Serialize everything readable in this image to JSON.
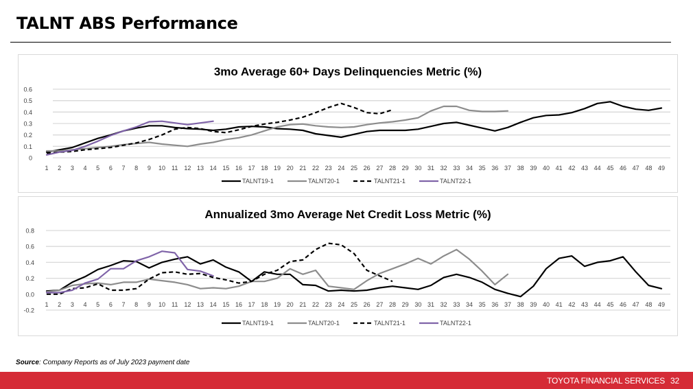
{
  "page": {
    "title": "TALNT ABS Performance",
    "source_label": "Source",
    "source_text": ": Company Reports as of July 2023 payment date",
    "footer_brand": "TOYOTA FINANCIAL SERVICES",
    "page_number": "32",
    "colors": {
      "footer": "#d52b36",
      "talnt19": "#000000",
      "talnt20": "#8c8c8c",
      "talnt21": "#000000",
      "talnt22": "#7f63a8"
    }
  },
  "chart_data": [
    {
      "type": "line",
      "title": "3mo Average 60+ Days Delinquencies Metric (%)",
      "xlabel": "",
      "ylabel": "",
      "x": [
        1,
        2,
        3,
        4,
        5,
        6,
        7,
        8,
        9,
        10,
        11,
        12,
        13,
        14,
        15,
        16,
        17,
        18,
        19,
        20,
        21,
        22,
        23,
        24,
        25,
        26,
        27,
        28,
        29,
        30,
        31,
        32,
        33,
        34,
        35,
        36,
        37,
        38,
        39,
        40,
        41,
        42,
        43,
        44,
        45,
        46,
        47,
        48,
        49
      ],
      "ylim": [
        0,
        0.6
      ],
      "yticks": [
        "0",
        "0.1",
        "0.2",
        "0.3",
        "0.4",
        "0.5",
        "0.6"
      ],
      "grid": true,
      "legend": "bottom",
      "series": [
        {
          "name": "TALNT19-1",
          "style": "solid",
          "color": "#000000",
          "values": [
            0.05,
            0.07,
            0.09,
            0.13,
            0.17,
            0.2,
            0.235,
            0.26,
            0.28,
            0.28,
            0.265,
            0.255,
            0.25,
            0.24,
            0.25,
            0.27,
            0.275,
            0.27,
            0.255,
            0.25,
            0.24,
            0.21,
            0.195,
            0.18,
            0.205,
            0.23,
            0.24,
            0.24,
            0.24,
            0.25,
            0.275,
            0.3,
            0.31,
            0.285,
            0.26,
            0.235,
            0.265,
            0.31,
            0.35,
            0.37,
            0.375,
            0.395,
            0.43,
            0.475,
            0.49,
            0.45,
            0.425,
            0.415,
            0.435
          ]
        },
        {
          "name": "TALNT20-1",
          "style": "solid",
          "color": "#8c8c8c",
          "values": [
            0.06,
            0.06,
            0.07,
            0.08,
            0.09,
            0.1,
            0.115,
            0.125,
            0.135,
            0.12,
            0.11,
            0.1,
            0.12,
            0.135,
            0.16,
            0.175,
            0.2,
            0.235,
            0.27,
            0.29,
            0.295,
            0.28,
            0.27,
            0.265,
            0.27,
            0.29,
            0.305,
            0.315,
            0.33,
            0.35,
            0.41,
            0.45,
            0.45,
            0.415,
            0.405,
            0.405,
            0.41
          ]
        },
        {
          "name": "TALNT21-1",
          "style": "dashed",
          "color": "#000000",
          "values": [
            0.04,
            0.05,
            0.055,
            0.07,
            0.08,
            0.09,
            0.11,
            0.13,
            0.16,
            0.2,
            0.25,
            0.265,
            0.255,
            0.23,
            0.22,
            0.245,
            0.275,
            0.295,
            0.31,
            0.33,
            0.355,
            0.395,
            0.44,
            0.475,
            0.44,
            0.395,
            0.385,
            0.42
          ]
        },
        {
          "name": "TALNT22-1",
          "style": "solid",
          "color": "#7f63a8",
          "values": [
            0.025,
            0.05,
            0.065,
            0.1,
            0.145,
            0.195,
            0.235,
            0.27,
            0.315,
            0.32,
            0.305,
            0.29,
            0.305,
            0.32
          ]
        }
      ]
    },
    {
      "type": "line",
      "title": "Annualized 3mo Average Net Credit Loss Metric (%)",
      "xlabel": "",
      "ylabel": "",
      "x": [
        1,
        2,
        3,
        4,
        5,
        6,
        7,
        8,
        9,
        10,
        11,
        12,
        13,
        14,
        15,
        16,
        17,
        18,
        19,
        20,
        21,
        22,
        23,
        24,
        25,
        26,
        27,
        28,
        29,
        30,
        31,
        32,
        33,
        34,
        35,
        36,
        37,
        38,
        39,
        40,
        41,
        42,
        43,
        44,
        45,
        46,
        47,
        48,
        49
      ],
      "ylim": [
        -0.2,
        0.8
      ],
      "yticks": [
        "-0.2",
        "0.0",
        "0.2",
        "0.4",
        "0.6",
        "0.8"
      ],
      "grid": true,
      "legend": "bottom",
      "series": [
        {
          "name": "TALNT19-1",
          "style": "solid",
          "color": "#000000",
          "values": [
            0.04,
            0.05,
            0.15,
            0.22,
            0.31,
            0.36,
            0.42,
            0.41,
            0.33,
            0.4,
            0.44,
            0.47,
            0.38,
            0.43,
            0.34,
            0.28,
            0.16,
            0.28,
            0.25,
            0.25,
            0.12,
            0.11,
            0.04,
            0.05,
            0.04,
            0.05,
            0.08,
            0.1,
            0.08,
            0.06,
            0.11,
            0.21,
            0.25,
            0.21,
            0.15,
            0.06,
            0.01,
            -0.03,
            0.1,
            0.32,
            0.45,
            0.48,
            0.35,
            0.4,
            0.42,
            0.47,
            0.28,
            0.11,
            0.07
          ]
        },
        {
          "name": "TALNT20-1",
          "style": "solid",
          "color": "#8c8c8c",
          "values": [
            0.03,
            0.05,
            0.11,
            0.13,
            0.14,
            0.12,
            0.15,
            0.15,
            0.19,
            0.17,
            0.15,
            0.12,
            0.07,
            0.08,
            0.07,
            0.1,
            0.16,
            0.16,
            0.2,
            0.32,
            0.25,
            0.3,
            0.1,
            0.08,
            0.06,
            0.17,
            0.26,
            0.32,
            0.38,
            0.45,
            0.38,
            0.48,
            0.56,
            0.44,
            0.29,
            0.12,
            0.25
          ]
        },
        {
          "name": "TALNT21-1",
          "style": "dashed",
          "color": "#000000",
          "values": [
            0.0,
            0.0,
            0.07,
            0.08,
            0.13,
            0.05,
            0.05,
            0.07,
            0.19,
            0.27,
            0.28,
            0.25,
            0.26,
            0.21,
            0.18,
            0.14,
            0.16,
            0.25,
            0.3,
            0.41,
            0.43,
            0.56,
            0.64,
            0.62,
            0.51,
            0.3,
            0.23,
            0.16
          ]
        },
        {
          "name": "TALNT22-1",
          "style": "solid",
          "color": "#7f63a8",
          "values": [
            0.02,
            0.02,
            0.05,
            0.14,
            0.19,
            0.32,
            0.32,
            0.42,
            0.47,
            0.54,
            0.52,
            0.31,
            0.29,
            0.23
          ]
        }
      ]
    }
  ]
}
